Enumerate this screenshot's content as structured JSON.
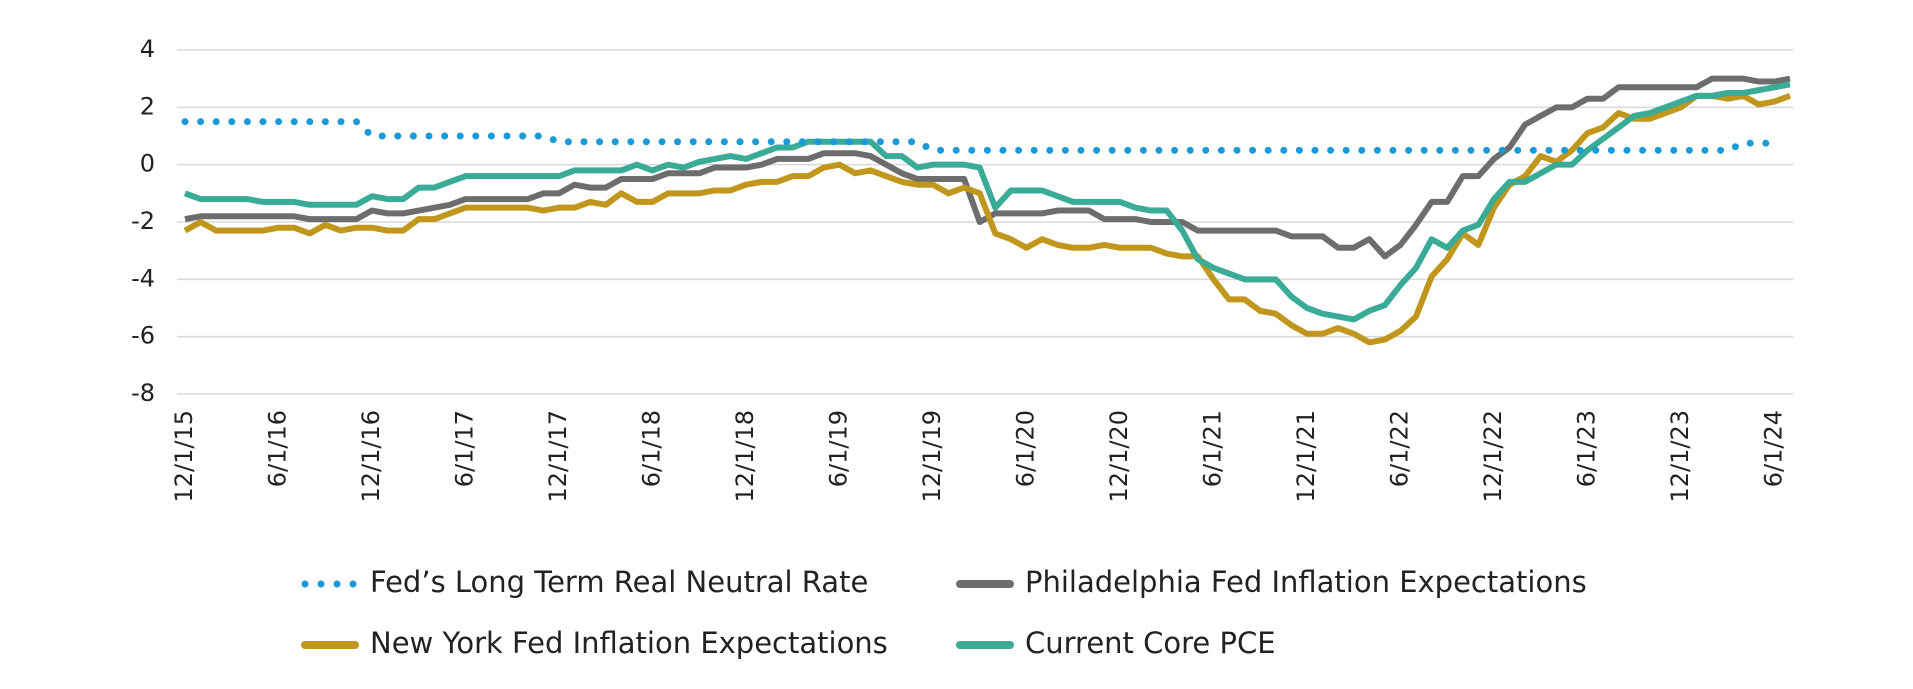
{
  "chart_data": {
    "type": "line",
    "categories": [
      "12/1/15",
      null,
      null,
      null,
      null,
      null,
      "6/1/16",
      null,
      null,
      null,
      null,
      null,
      "12/1/16",
      null,
      null,
      null,
      null,
      null,
      "6/1/17",
      null,
      null,
      null,
      null,
      null,
      "12/1/17",
      null,
      null,
      null,
      null,
      null,
      "6/1/18",
      null,
      null,
      null,
      null,
      null,
      "12/1/18",
      null,
      null,
      null,
      null,
      null,
      "6/1/19",
      null,
      null,
      null,
      null,
      null,
      "12/1/19",
      null,
      null,
      null,
      null,
      null,
      "6/1/20",
      null,
      null,
      null,
      null,
      null,
      "12/1/20",
      null,
      null,
      null,
      null,
      null,
      "6/1/21",
      null,
      null,
      null,
      null,
      null,
      "12/1/21",
      null,
      null,
      null,
      null,
      null,
      "6/1/22",
      null,
      null,
      null,
      null,
      null,
      "12/1/22",
      null,
      null,
      null,
      null,
      null,
      "6/1/23",
      null,
      null,
      null,
      null,
      null,
      "12/1/23",
      null,
      null,
      null,
      null,
      null,
      "6/1/24",
      null
    ],
    "series": [
      {
        "name": "Fed’s Long Term Real Neutral Rate",
        "color": "#1a9ad6",
        "style": "dotted",
        "values": [
          1.5,
          1.5,
          1.5,
          1.5,
          1.5,
          1.5,
          1.5,
          1.5,
          1.5,
          1.5,
          1.5,
          1.5,
          1.0,
          1.0,
          1.0,
          1.0,
          1.0,
          1.0,
          1.0,
          1.0,
          1.0,
          1.0,
          1.0,
          1.0,
          0.8,
          0.8,
          0.8,
          0.8,
          0.8,
          0.8,
          0.8,
          0.8,
          0.8,
          0.8,
          0.8,
          0.8,
          0.8,
          0.8,
          0.8,
          0.8,
          0.8,
          0.8,
          0.8,
          0.8,
          0.8,
          0.8,
          0.8,
          0.8,
          0.5,
          0.5,
          0.5,
          0.5,
          0.5,
          0.5,
          0.5,
          0.5,
          0.5,
          0.5,
          0.5,
          0.5,
          0.5,
          0.5,
          0.5,
          0.5,
          0.5,
          0.5,
          0.5,
          0.5,
          0.5,
          0.5,
          0.5,
          0.5,
          0.5,
          0.5,
          0.5,
          0.5,
          0.5,
          0.5,
          0.5,
          0.5,
          0.5,
          0.5,
          0.5,
          0.5,
          0.5,
          0.5,
          0.5,
          0.5,
          0.5,
          0.5,
          0.5,
          0.5,
          0.5,
          0.5,
          0.5,
          0.5,
          0.5,
          0.5,
          0.5,
          0.5,
          0.75,
          0.75,
          0.75,
          null
        ]
      },
      {
        "name": "Philadelphia Fed Inflation Expectations",
        "color": "#6d6d6d",
        "style": "solid",
        "values": [
          -1.9,
          -1.8,
          -1.8,
          -1.8,
          -1.8,
          -1.8,
          -1.8,
          -1.8,
          -1.9,
          -1.9,
          -1.9,
          -1.9,
          -1.6,
          -1.7,
          -1.7,
          -1.6,
          -1.5,
          -1.4,
          -1.2,
          -1.2,
          -1.2,
          -1.2,
          -1.2,
          -1.0,
          -1.0,
          -0.7,
          -0.8,
          -0.8,
          -0.5,
          -0.5,
          -0.5,
          -0.3,
          -0.3,
          -0.3,
          -0.1,
          -0.1,
          -0.1,
          0.0,
          0.2,
          0.2,
          0.2,
          0.4,
          0.4,
          0.4,
          0.3,
          0.0,
          -0.3,
          -0.5,
          -0.5,
          -0.5,
          -0.5,
          -2.0,
          -1.7,
          -1.7,
          -1.7,
          -1.7,
          -1.6,
          -1.6,
          -1.6,
          -1.9,
          -1.9,
          -1.9,
          -2.0,
          -2.0,
          -2.0,
          -2.3,
          -2.3,
          -2.3,
          -2.3,
          -2.3,
          -2.3,
          -2.5,
          -2.5,
          -2.5,
          -2.9,
          -2.9,
          -2.6,
          -3.2,
          -2.8,
          -2.1,
          -1.3,
          -1.3,
          -0.4,
          -0.4,
          0.2,
          0.6,
          1.4,
          1.7,
          2.0,
          2.0,
          2.3,
          2.3,
          2.7,
          2.7,
          2.7,
          2.7,
          2.7,
          2.7,
          3.0,
          3.0,
          3.0,
          2.9,
          2.9,
          3.0
        ]
      },
      {
        "name": "New York Fed Inflation Expectations",
        "color": "#c0961c",
        "style": "solid",
        "values": [
          -2.3,
          -2.0,
          -2.3,
          -2.3,
          -2.3,
          -2.3,
          -2.2,
          -2.2,
          -2.4,
          -2.1,
          -2.3,
          -2.2,
          -2.2,
          -2.3,
          -2.3,
          -1.9,
          -1.9,
          -1.7,
          -1.5,
          -1.5,
          -1.5,
          -1.5,
          -1.5,
          -1.6,
          -1.5,
          -1.5,
          -1.3,
          -1.4,
          -1.0,
          -1.3,
          -1.3,
          -1.0,
          -1.0,
          -1.0,
          -0.9,
          -0.9,
          -0.7,
          -0.6,
          -0.6,
          -0.4,
          -0.4,
          -0.1,
          0.0,
          -0.3,
          -0.2,
          -0.4,
          -0.6,
          -0.7,
          -0.7,
          -1.0,
          -0.8,
          -1.0,
          -2.4,
          -2.6,
          -2.9,
          -2.6,
          -2.8,
          -2.9,
          -2.9,
          -2.8,
          -2.9,
          -2.9,
          -2.9,
          -3.1,
          -3.2,
          -3.2,
          -4.0,
          -4.7,
          -4.7,
          -5.1,
          -5.2,
          -5.6,
          -5.9,
          -5.9,
          -5.7,
          -5.9,
          -6.2,
          -6.1,
          -5.8,
          -5.3,
          -3.9,
          -3.3,
          -2.4,
          -2.8,
          -1.5,
          -0.7,
          -0.4,
          0.3,
          0.1,
          0.5,
          1.1,
          1.3,
          1.8,
          1.6,
          1.6,
          1.8,
          2.0,
          2.4,
          2.4,
          2.3,
          2.4,
          2.1,
          2.2,
          2.4
        ]
      },
      {
        "name": "Current Core PCE",
        "color": "#3aab96",
        "style": "solid",
        "values": [
          -1.0,
          -1.2,
          -1.2,
          -1.2,
          -1.2,
          -1.3,
          -1.3,
          -1.3,
          -1.4,
          -1.4,
          -1.4,
          -1.4,
          -1.1,
          -1.2,
          -1.2,
          -0.8,
          -0.8,
          -0.6,
          -0.4,
          -0.4,
          -0.4,
          -0.4,
          -0.4,
          -0.4,
          -0.4,
          -0.2,
          -0.2,
          -0.2,
          -0.2,
          0.0,
          -0.2,
          0.0,
          -0.1,
          0.1,
          0.2,
          0.3,
          0.2,
          0.4,
          0.6,
          0.6,
          0.8,
          0.8,
          0.8,
          0.8,
          0.8,
          0.3,
          0.3,
          -0.1,
          0.0,
          0.0,
          0.0,
          -0.1,
          -1.5,
          -0.9,
          -0.9,
          -0.9,
          -1.1,
          -1.3,
          -1.3,
          -1.3,
          -1.3,
          -1.5,
          -1.6,
          -1.6,
          -2.3,
          -3.3,
          -3.6,
          -3.8,
          -4.0,
          -4.0,
          -4.0,
          -4.6,
          -5.0,
          -5.2,
          -5.3,
          -5.4,
          -5.1,
          -4.9,
          -4.2,
          -3.6,
          -2.6,
          -2.9,
          -2.3,
          -2.1,
          -1.2,
          -0.6,
          -0.6,
          -0.3,
          0.0,
          0.0,
          0.5,
          0.9,
          1.3,
          1.7,
          1.8,
          2.0,
          2.2,
          2.4,
          2.4,
          2.5,
          2.5,
          2.6,
          2.7,
          2.8
        ]
      }
    ],
    "ylim": [
      -8,
      4
    ],
    "yticks": [
      4,
      2,
      0,
      -2,
      -4,
      -6,
      -8
    ],
    "grid": true,
    "legend": "bottom"
  }
}
